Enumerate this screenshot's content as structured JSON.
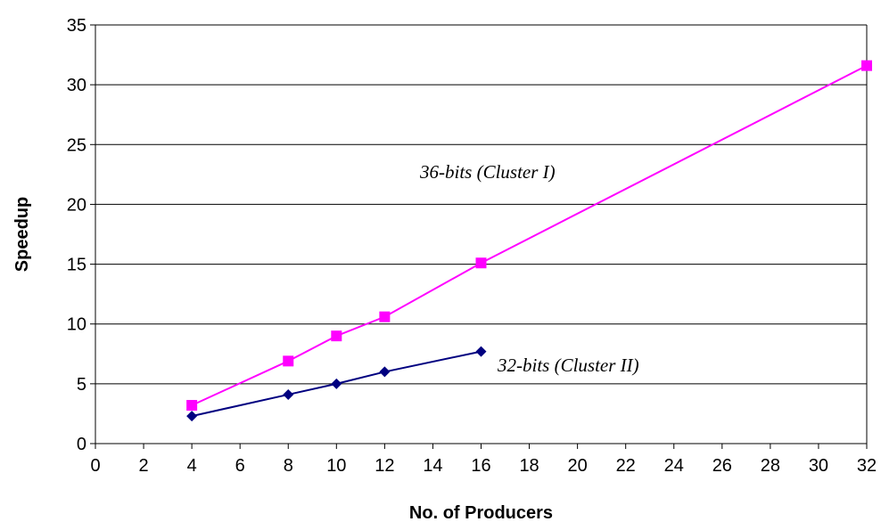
{
  "chart_data": {
    "type": "line",
    "title": "",
    "xlabel": "No. of Producers",
    "ylabel": "Speedup",
    "xlim": [
      0,
      32
    ],
    "ylim": [
      0,
      35
    ],
    "xticks": [
      0,
      2,
      4,
      6,
      8,
      10,
      12,
      14,
      16,
      18,
      20,
      22,
      24,
      26,
      28,
      30,
      32
    ],
    "yticks": [
      0,
      5,
      10,
      15,
      20,
      25,
      30,
      35
    ],
    "grid": "horizontal",
    "legend": "none",
    "series": [
      {
        "name": "36-bits (Cluster I)",
        "marker": "square",
        "color": "#FF00FF",
        "x": [
          4,
          8,
          10,
          12,
          16,
          32
        ],
        "y": [
          3.2,
          6.9,
          9.0,
          10.6,
          15.1,
          31.6
        ]
      },
      {
        "name": "32-bits (Cluster II)",
        "marker": "diamond",
        "color": "#000080",
        "x": [
          4,
          8,
          10,
          12,
          16
        ],
        "y": [
          2.3,
          4.1,
          5.0,
          6.0,
          7.7
        ]
      }
    ]
  }
}
